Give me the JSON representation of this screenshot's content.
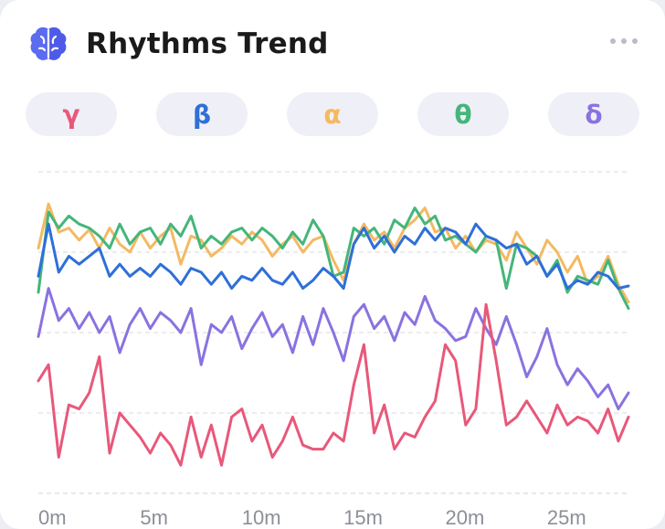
{
  "card": {
    "title": "Rhythms Trend",
    "icon": "brain-icon",
    "menu_icon": "more-horizontal-icon"
  },
  "tabs": [
    {
      "label": "γ",
      "color": "#e8587a"
    },
    {
      "label": "β",
      "color": "#2f6fd8"
    },
    {
      "label": "α",
      "color": "#f4b962"
    },
    {
      "label": "θ",
      "color": "#44b67a"
    },
    {
      "label": "δ",
      "color": "#8a72e0"
    }
  ],
  "chart_data": {
    "type": "line",
    "x_unit": "minutes",
    "x_ticks": [
      "0m",
      "5m",
      "10m",
      "15m",
      "20m",
      "25m"
    ],
    "x_tick_values": [
      0,
      5,
      10,
      15,
      20,
      25
    ],
    "xlim": [
      0,
      29
    ],
    "ylim": [
      0,
      4
    ],
    "grid": true,
    "series": [
      {
        "name": "α",
        "color": "#f4b962",
        "x": [
          0,
          0.5,
          1,
          1.5,
          2,
          2.5,
          3,
          3.5,
          4,
          4.5,
          5,
          5.5,
          6,
          6.5,
          7,
          7.5,
          8,
          8.5,
          9,
          9.5,
          10,
          10.5,
          11,
          11.5,
          12,
          12.5,
          13,
          13.5,
          14,
          14.5,
          15,
          15.5,
          16,
          16.5,
          17,
          17.5,
          18,
          18.5,
          19,
          19.5,
          20,
          20.5,
          21,
          21.5,
          22,
          22.5,
          23,
          23.5,
          24,
          24.5,
          25,
          25.5,
          26,
          26.5,
          27,
          27.5,
          28,
          28.5,
          29
        ],
        "y": [
          3.05,
          3.6,
          3.25,
          3.3,
          3.15,
          3.28,
          3.05,
          3.3,
          3.1,
          3.0,
          3.25,
          3.05,
          3.2,
          3.3,
          2.85,
          3.2,
          3.15,
          2.95,
          3.05,
          3.2,
          3.1,
          3.25,
          3.15,
          2.95,
          3.1,
          3.2,
          3.0,
          3.15,
          3.2,
          2.9,
          2.65,
          3.1,
          3.35,
          3.15,
          3.25,
          3.05,
          3.3,
          3.4,
          3.55,
          3.25,
          3.3,
          3.05,
          3.2,
          3.0,
          3.15,
          3.1,
          2.9,
          3.25,
          3.05,
          2.85,
          3.15,
          3.0,
          2.75,
          2.95,
          2.6,
          2.7,
          2.95,
          2.6,
          2.38
        ]
      },
      {
        "name": "θ",
        "color": "#44b67a",
        "x": [
          0,
          0.5,
          1,
          1.5,
          2,
          2.5,
          3,
          3.5,
          4,
          4.5,
          5,
          5.5,
          6,
          6.5,
          7,
          7.5,
          8,
          8.5,
          9,
          9.5,
          10,
          10.5,
          11,
          11.5,
          12,
          12.5,
          13,
          13.5,
          14,
          14.5,
          15,
          15.5,
          16,
          16.5,
          17,
          17.5,
          18,
          18.5,
          19,
          19.5,
          20,
          20.5,
          21,
          21.5,
          22,
          22.5,
          23,
          23.5,
          24,
          24.5,
          25,
          25.5,
          26,
          26.5,
          27,
          27.5,
          28,
          28.5,
          29
        ],
        "y": [
          2.5,
          3.5,
          3.3,
          3.45,
          3.35,
          3.3,
          3.2,
          3.05,
          3.35,
          3.1,
          3.25,
          3.3,
          3.1,
          3.35,
          3.2,
          3.45,
          3.05,
          3.2,
          3.1,
          3.25,
          3.3,
          3.15,
          3.3,
          3.2,
          3.05,
          3.25,
          3.1,
          3.4,
          3.2,
          2.7,
          2.75,
          3.3,
          3.2,
          3.3,
          3.1,
          3.4,
          3.3,
          3.55,
          3.35,
          3.45,
          3.15,
          3.2,
          3.1,
          3.0,
          3.2,
          3.15,
          2.55,
          3.1,
          3.05,
          2.95,
          2.7,
          2.9,
          2.5,
          2.7,
          2.65,
          2.6,
          2.9,
          2.55,
          2.3
        ]
      },
      {
        "name": "β",
        "color": "#2f6fd8",
        "x": [
          0,
          0.5,
          1,
          1.5,
          2,
          2.5,
          3,
          3.5,
          4,
          4.5,
          5,
          5.5,
          6,
          6.5,
          7,
          7.5,
          8,
          8.5,
          9,
          9.5,
          10,
          10.5,
          11,
          11.5,
          12,
          12.5,
          13,
          13.5,
          14,
          14.5,
          15,
          15.5,
          16,
          16.5,
          17,
          17.5,
          18,
          18.5,
          19,
          19.5,
          20,
          20.5,
          21,
          21.5,
          22,
          22.5,
          23,
          23.5,
          24,
          24.5,
          25,
          25.5,
          26,
          26.5,
          27,
          27.5,
          28,
          28.5,
          29
        ],
        "y": [
          2.7,
          3.35,
          2.75,
          2.95,
          2.85,
          2.95,
          3.05,
          2.7,
          2.85,
          2.7,
          2.8,
          2.7,
          2.85,
          2.75,
          2.6,
          2.8,
          2.75,
          2.6,
          2.75,
          2.55,
          2.7,
          2.65,
          2.8,
          2.65,
          2.6,
          2.75,
          2.55,
          2.65,
          2.8,
          2.7,
          2.55,
          3.1,
          3.3,
          3.05,
          3.2,
          3.0,
          3.2,
          3.1,
          3.3,
          3.15,
          3.3,
          3.25,
          3.1,
          3.35,
          3.2,
          3.15,
          3.05,
          3.1,
          2.85,
          2.95,
          2.7,
          2.85,
          2.55,
          2.65,
          2.6,
          2.75,
          2.7,
          2.55,
          2.58
        ]
      },
      {
        "name": "δ",
        "color": "#8a72e0",
        "x": [
          0,
          0.5,
          1,
          1.5,
          2,
          2.5,
          3,
          3.5,
          4,
          4.5,
          5,
          5.5,
          6,
          6.5,
          7,
          7.5,
          8,
          8.5,
          9,
          9.5,
          10,
          10.5,
          11,
          11.5,
          12,
          12.5,
          13,
          13.5,
          14,
          14.5,
          15,
          15.5,
          16,
          16.5,
          17,
          17.5,
          18,
          18.5,
          19,
          19.5,
          20,
          20.5,
          21,
          21.5,
          22,
          22.5,
          23,
          23.5,
          24,
          24.5,
          25,
          25.5,
          26,
          26.5,
          27,
          27.5,
          28,
          28.5,
          29
        ],
        "y": [
          1.95,
          2.55,
          2.15,
          2.3,
          2.05,
          2.25,
          2.0,
          2.2,
          1.75,
          2.1,
          2.3,
          2.05,
          2.25,
          2.15,
          2.0,
          2.3,
          1.6,
          2.1,
          2.0,
          2.2,
          1.8,
          2.05,
          2.25,
          1.95,
          2.1,
          1.75,
          2.2,
          1.85,
          2.3,
          2.0,
          1.65,
          2.2,
          2.35,
          2.05,
          2.2,
          1.9,
          2.25,
          2.1,
          2.45,
          2.15,
          2.05,
          1.9,
          1.95,
          2.3,
          2.05,
          1.85,
          2.2,
          1.85,
          1.45,
          1.7,
          2.05,
          1.6,
          1.35,
          1.55,
          1.4,
          1.2,
          1.35,
          1.05,
          1.25
        ]
      },
      {
        "name": "γ",
        "color": "#e8587a",
        "x": [
          0,
          0.5,
          1,
          1.5,
          2,
          2.5,
          3,
          3.5,
          4,
          4.5,
          5,
          5.5,
          6,
          6.5,
          7,
          7.5,
          8,
          8.5,
          9,
          9.5,
          10,
          10.5,
          11,
          11.5,
          12,
          12.5,
          13,
          13.5,
          14,
          14.5,
          15,
          15.5,
          16,
          16.5,
          17,
          17.5,
          18,
          18.5,
          19,
          19.5,
          20,
          20.5,
          21,
          21.5,
          22,
          22.5,
          23,
          23.5,
          24,
          24.5,
          25,
          25.5,
          26,
          26.5,
          27,
          27.5,
          28,
          28.5,
          29
        ],
        "y": [
          1.4,
          1.6,
          0.45,
          1.1,
          1.05,
          1.25,
          1.7,
          0.5,
          1.0,
          0.85,
          0.7,
          0.5,
          0.75,
          0.6,
          0.35,
          0.95,
          0.45,
          0.85,
          0.35,
          0.95,
          1.05,
          0.65,
          0.85,
          0.45,
          0.65,
          0.95,
          0.6,
          0.55,
          0.55,
          0.75,
          0.65,
          1.35,
          1.85,
          0.75,
          1.1,
          0.55,
          0.75,
          0.7,
          0.95,
          1.15,
          1.85,
          1.65,
          0.85,
          1.05,
          2.35,
          1.65,
          0.85,
          0.95,
          1.15,
          0.95,
          0.75,
          1.1,
          0.85,
          0.95,
          0.9,
          0.75,
          1.05,
          0.65,
          0.95
        ]
      }
    ]
  }
}
